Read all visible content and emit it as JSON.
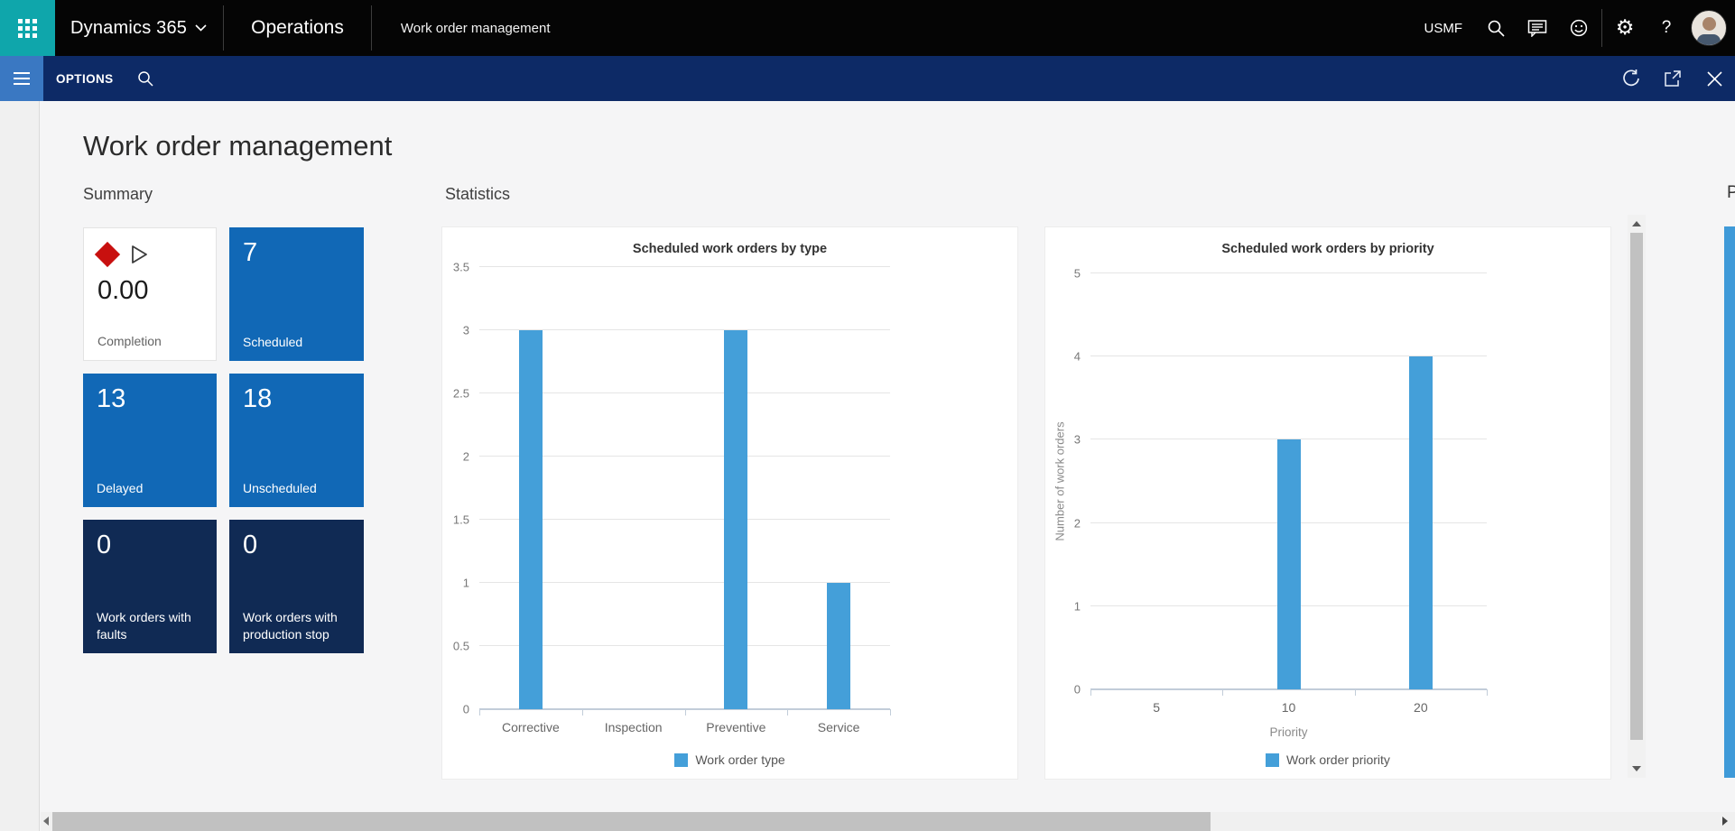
{
  "topbar": {
    "brand": "Dynamics 365",
    "product": "Operations",
    "page": "Work order management",
    "company": "USMF",
    "help_label": "?"
  },
  "navbar": {
    "options_label": "OPTIONS"
  },
  "page": {
    "title": "Work order management",
    "summary_heading": "Summary",
    "statistics_heading": "Statistics",
    "next_section_partial": "P"
  },
  "summary": {
    "tiles": [
      {
        "value": "0.00",
        "label": "Completion"
      },
      {
        "value": "7",
        "label": "Scheduled"
      },
      {
        "value": "13",
        "label": "Delayed"
      },
      {
        "value": "18",
        "label": "Unscheduled"
      },
      {
        "value": "0",
        "label": "Work orders with faults"
      },
      {
        "value": "0",
        "label": "Work orders with production stop"
      }
    ],
    "colors": {
      "tile_blue": "#1168b6",
      "tile_dark": "#102a54",
      "diamond_red": "#c8100f"
    }
  },
  "chart_data": [
    {
      "type": "bar",
      "title": "Scheduled work orders by type",
      "categories": [
        "Corrective",
        "Inspection",
        "Preventive",
        "Service"
      ],
      "values": [
        3,
        0,
        3,
        1
      ],
      "xlabel": "",
      "ylabel": "",
      "ylim": [
        0,
        3.5
      ],
      "ystep": 0.5,
      "grid": true,
      "legend": "Work order type",
      "legend_position": "bottom",
      "bar_color": "#449fd9"
    },
    {
      "type": "bar",
      "title": "Scheduled work orders by priority",
      "categories": [
        "5",
        "10",
        "20"
      ],
      "values": [
        0,
        3,
        4
      ],
      "xlabel": "Priority",
      "ylabel": "Number of work orders",
      "ylim": [
        0,
        5
      ],
      "ystep": 1,
      "grid": true,
      "legend": "Work order priority",
      "legend_position": "bottom",
      "bar_color": "#449fd9"
    }
  ],
  "icons": {
    "app-launcher-icon": "waffle-grid",
    "chevron-down-icon": "chevron-down",
    "search-icon": "magnifier",
    "feedback-icon": "speech-bubble-lines",
    "smiley-icon": "smiley-face",
    "gear-icon": "⚙",
    "help-icon": "?",
    "hamburger-icon": "three-bars",
    "refresh-icon": "circular-arrow",
    "popout-icon": "open-in-new-window",
    "close-icon": "x-cross",
    "completion-diamond-icon": "red-diamond",
    "completion-play-icon": "outlined-triangle"
  }
}
